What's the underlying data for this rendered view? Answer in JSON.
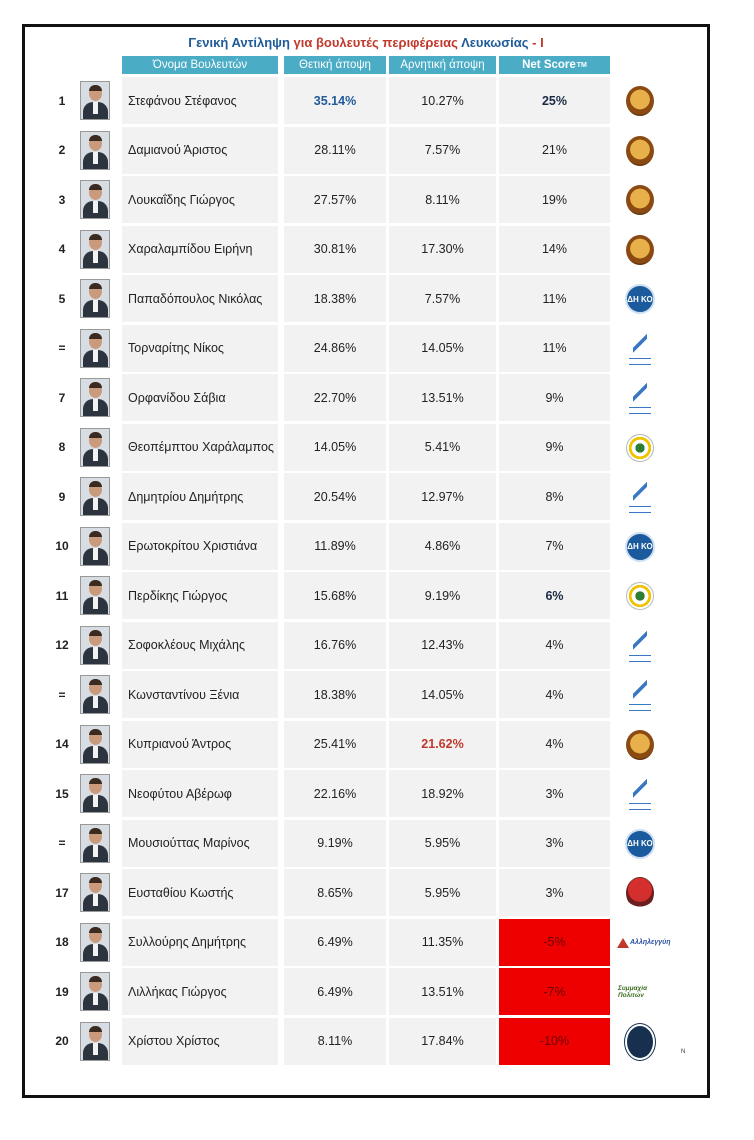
{
  "title": {
    "part1": "Γενική Αντίληψη ",
    "part2": "για βουλευτές περιφέρειας ",
    "part3": "Λευκωσίας",
    "part4": " - I"
  },
  "headers": {
    "name": "Όνομα Βουλευτών",
    "positive": "Θετική άποψη",
    "negative": "Αρνητική άποψη",
    "netscore": "Net Score",
    "tm": "TM"
  },
  "colors": {
    "header_bg": "#4bacc6",
    "negative_ns_bg": "#ee0000",
    "highlight_blue": "#1f5a99",
    "highlight_red": "#c0392b"
  },
  "rows": [
    {
      "rank": "1",
      "name": "Στεφάνου Στέφανος",
      "pos": "35.14%",
      "neg": "10.27%",
      "ns": "25%",
      "party_icon": "akel-logo",
      "pos_hl": "blue",
      "ns_hl": "bold"
    },
    {
      "rank": "2",
      "name": "Δαμιανού Άριστος",
      "pos": "28.11%",
      "neg": "7.57%",
      "ns": "21%",
      "party_icon": "akel-logo"
    },
    {
      "rank": "3",
      "name": "Λουκαΐδης Γιώργος",
      "pos": "27.57%",
      "neg": "8.11%",
      "ns": "19%",
      "party_icon": "akel-logo"
    },
    {
      "rank": "4",
      "name": "Χαραλαμπίδου Ειρήνη",
      "pos": "30.81%",
      "neg": "17.30%",
      "ns": "14%",
      "party_icon": "akel-logo"
    },
    {
      "rank": "5",
      "name": "Παπαδόπουλος Νικόλας",
      "pos": "18.38%",
      "neg": "7.57%",
      "ns": "11%",
      "party_icon": "diko-logo"
    },
    {
      "rank": "=",
      "name": "Τορναρίτης Νίκος",
      "pos": "24.86%",
      "neg": "14.05%",
      "ns": "11%",
      "party_icon": "disy-logo"
    },
    {
      "rank": "7",
      "name": "Ορφανίδου Σάβια",
      "pos": "22.70%",
      "neg": "13.51%",
      "ns": "9%",
      "party_icon": "disy-logo"
    },
    {
      "rank": "8",
      "name": "Θεοπέμπτου Χαράλαμπος",
      "pos": "14.05%",
      "neg": "5.41%",
      "ns": "9%",
      "party_icon": "greens-logo"
    },
    {
      "rank": "9",
      "name": "Δημητρίου Δημήτρης",
      "pos": "20.54%",
      "neg": "12.97%",
      "ns": "8%",
      "party_icon": "disy-logo"
    },
    {
      "rank": "10",
      "name": "Ερωτοκρίτου Χριστιάνα",
      "pos": "11.89%",
      "neg": "4.86%",
      "ns": "7%",
      "party_icon": "diko-logo"
    },
    {
      "rank": "11",
      "name": "Περδίκης Γιώργος",
      "pos": "15.68%",
      "neg": "9.19%",
      "ns": "6%",
      "party_icon": "greens-logo",
      "ns_hl": "bold"
    },
    {
      "rank": "12",
      "name": "Σοφοκλέους Μιχάλης",
      "pos": "16.76%",
      "neg": "12.43%",
      "ns": "4%",
      "party_icon": "disy-logo"
    },
    {
      "rank": "=",
      "name": "Κωνσταντίνου Ξένια",
      "pos": "18.38%",
      "neg": "14.05%",
      "ns": "4%",
      "party_icon": "disy-logo"
    },
    {
      "rank": "14",
      "name": "Κυπριανού Άντρος",
      "pos": "25.41%",
      "neg": "21.62%",
      "ns": "4%",
      "party_icon": "akel-logo",
      "neg_hl": "red"
    },
    {
      "rank": "15",
      "name": "Νεοφύτου Αβέρωφ",
      "pos": "22.16%",
      "neg": "18.92%",
      "ns": "3%",
      "party_icon": "disy-logo"
    },
    {
      "rank": "=",
      "name": "Μουσιούττας Μαρίνος",
      "pos": "9.19%",
      "neg": "5.95%",
      "ns": "3%",
      "party_icon": "diko-logo"
    },
    {
      "rank": "17",
      "name": "Ευσταθίου Κωστής",
      "pos": "8.65%",
      "neg": "5.95%",
      "ns": "3%",
      "party_icon": "edek-logo"
    },
    {
      "rank": "18",
      "name": "Συλλούρης Δημήτρης",
      "pos": "6.49%",
      "neg": "11.35%",
      "ns": "-5%",
      "party_icon": "allilegyi-logo",
      "ns_negative": true
    },
    {
      "rank": "19",
      "name": "Λιλλήκας Γιώργος",
      "pos": "6.49%",
      "neg": "13.51%",
      "ns": "-7%",
      "party_icon": "symmachia-logo",
      "ns_negative": true
    },
    {
      "rank": "20",
      "name": "Χρίστου Χρίστος",
      "pos": "8.11%",
      "neg": "17.84%",
      "ns": "-10%",
      "party_icon": "elam-logo",
      "ns_negative": true
    }
  ],
  "logo_text": {
    "diko": "ΔΗ ΚΟ",
    "allilegyi": "Αλληλεγγύη",
    "symmachia": "Συμμαχία Πολιτών"
  },
  "watermark": "N"
}
